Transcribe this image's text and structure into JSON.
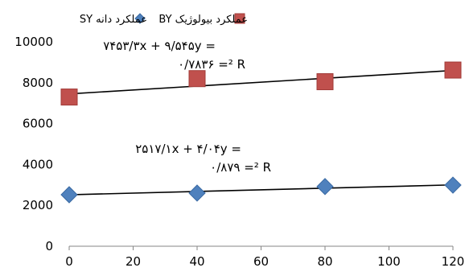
{
  "chart_data": {
    "type": "scatter",
    "x": [
      0,
      40,
      80,
      120
    ],
    "xlim": [
      0,
      120
    ],
    "xticks": [
      "0",
      "20",
      "40",
      "60",
      "80",
      "100",
      "120"
    ],
    "ylim": [
      0,
      10000
    ],
    "yticks": [
      "0",
      "2000",
      "4000",
      "6000",
      "8000",
      "10000"
    ],
    "grid": false,
    "legend_position": "top",
    "series": [
      {
        "name": "عملکرد بیولوژیک BY",
        "marker": "square",
        "color": "#c0504d",
        "values": [
          7300,
          8200,
          8050,
          8620
        ],
        "trendline": {
          "intercept": 7453.3,
          "slope": 9.545
        },
        "equation": {
          "line1": "۷۴۵۳/۳x + ۹/۵۴۵y =",
          "line2": "۰/۷۸۳۶ =² R"
        }
      },
      {
        "name": "عملکرد دانه SY",
        "marker": "diamond",
        "color": "#4f81bd",
        "values": [
          2520,
          2600,
          2920,
          2990
        ],
        "trendline": {
          "intercept": 2517.1,
          "slope": 4.04
        },
        "equation": {
          "line1": "۲۵۱۷/۱x + ۴/۰۴y =",
          "line2": "۰/۸۷۹ =² R"
        }
      }
    ]
  }
}
